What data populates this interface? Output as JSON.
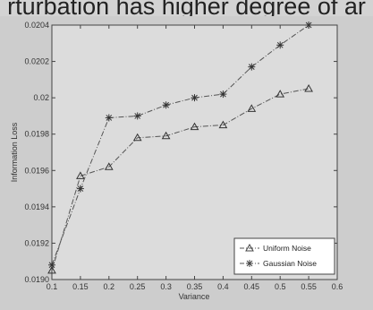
{
  "caption_fragment": "rturbation has higher degree of ar",
  "chart_data": {
    "type": "line",
    "xlabel": "Variance",
    "ylabel": "Information Loss",
    "xlim": [
      0.1,
      0.6
    ],
    "ylim": [
      0.019,
      0.0204
    ],
    "x_ticks": [
      0.1,
      0.15,
      0.2,
      0.25,
      0.3,
      0.35,
      0.4,
      0.45,
      0.5,
      0.55,
      0.6
    ],
    "x_tick_labels": [
      "0.1",
      "0.15",
      "0.2",
      "0.25",
      "0.3",
      "0.35",
      "0.4",
      "0.45",
      "0.5",
      "0.55",
      "0.6"
    ],
    "y_ticks": [
      0.019,
      0.0192,
      0.0194,
      0.0196,
      0.0198,
      0.02,
      0.0202,
      0.0204
    ],
    "y_tick_labels": [
      "0.0190",
      "0.0192",
      "0.0194",
      "0.0196",
      "0.0198",
      "0.02",
      "0.0202",
      "0.0204"
    ],
    "grid": false,
    "legend_position": "bottom-right",
    "series": [
      {
        "name": "Uniform Noise",
        "marker": "triangle",
        "line_style": "dash-dot",
        "color": "#555555",
        "x": [
          0.1,
          0.15,
          0.2,
          0.25,
          0.3,
          0.35,
          0.4,
          0.45,
          0.5,
          0.55
        ],
        "values": [
          0.01905,
          0.01957,
          0.01962,
          0.01978,
          0.01979,
          0.01984,
          0.01985,
          0.01994,
          0.02002,
          0.02005
        ]
      },
      {
        "name": "Gaussian Noise",
        "marker": "star",
        "line_style": "dash-dot",
        "color": "#555555",
        "x": [
          0.1,
          0.15,
          0.2,
          0.25,
          0.3,
          0.35,
          0.4,
          0.45,
          0.5,
          0.55
        ],
        "values": [
          0.01908,
          0.0195,
          0.01989,
          0.0199,
          0.01996,
          0.02,
          0.02002,
          0.02017,
          0.02029,
          0.0204
        ]
      }
    ]
  }
}
